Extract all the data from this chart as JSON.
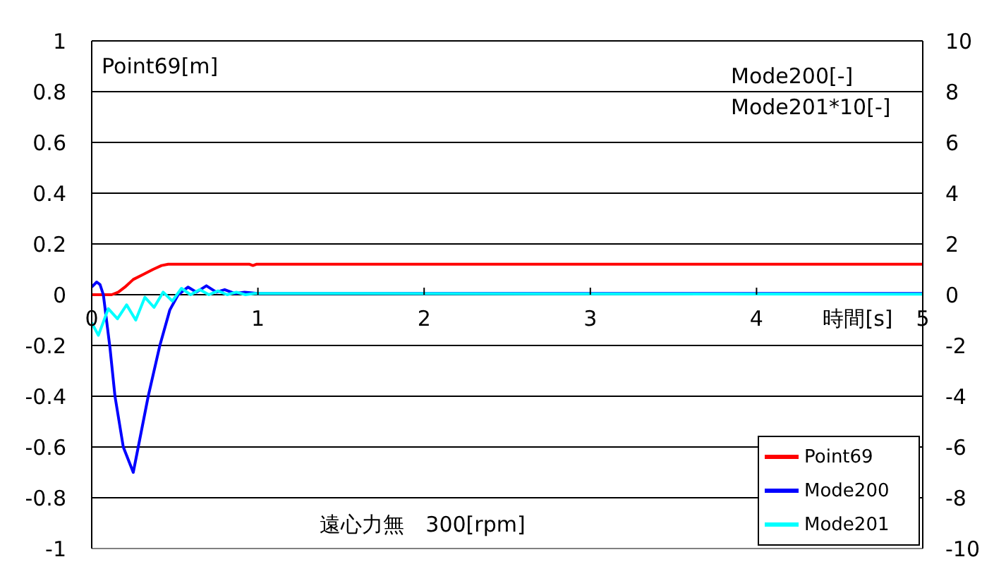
{
  "chart_data": {
    "type": "line",
    "xlabel": "時間[s]",
    "ylabel": "Point69[m]",
    "y2label": "Mode200[-]\nMode201*10[-]",
    "annotations": [
      "遠心力無　300[rpm]"
    ],
    "xlim": [
      0,
      5
    ],
    "xticks": [
      0,
      1,
      2,
      3,
      4,
      5
    ],
    "ylim": [
      -1,
      1
    ],
    "yticks": [
      -1,
      -0.8,
      -0.6,
      -0.4,
      -0.2,
      0,
      0.2,
      0.4,
      0.6,
      0.8,
      1
    ],
    "y2lim": [
      -10,
      10
    ],
    "y2ticks": [
      -10,
      -8,
      -6,
      -4,
      -2,
      0,
      2,
      4,
      6,
      8,
      10
    ],
    "grid": "y",
    "legend": "bottom right",
    "marker": "none",
    "line_style": "solid",
    "series": [
      {
        "name": "Point69",
        "color": "#ff0000",
        "x": [
          0,
          0.12,
          0.16,
          0.2,
          0.25,
          0.31,
          0.37,
          0.42,
          0.46,
          0.95,
          0.97,
          0.99,
          5
        ],
        "values": [
          0,
          0,
          0.01,
          0.03,
          0.06,
          0.08,
          0.1,
          0.115,
          0.12,
          0.12,
          0.115,
          0.12,
          0.12
        ]
      },
      {
        "name": "Mode200",
        "color": "#0000ff",
        "axis": "y2",
        "x": [
          0,
          0.03,
          0.05,
          0.07,
          0.11,
          0.14,
          0.19,
          0.25,
          0.28,
          0.34,
          0.41,
          0.47,
          0.52,
          0.58,
          0.63,
          0.69,
          0.75,
          0.8,
          0.86,
          0.92,
          1,
          5
        ],
        "values": [
          0.3,
          0.5,
          0.4,
          0,
          -2.1,
          -4,
          -6,
          -7,
          -6,
          -4,
          -2,
          -0.6,
          0,
          0.3,
          0.1,
          0.35,
          0.1,
          0.2,
          0.05,
          0.1,
          0.05,
          0.05
        ]
      },
      {
        "name": "Mode201",
        "color": "#00ffff",
        "axis": "y2",
        "x": [
          0,
          0.04,
          0.1,
          0.155,
          0.21,
          0.265,
          0.32,
          0.375,
          0.43,
          0.485,
          0.54,
          0.595,
          0.65,
          0.705,
          0.76,
          0.815,
          0.87,
          0.925,
          0.98,
          5
        ],
        "values": [
          -1.1,
          -1.6,
          -0.55,
          -0.95,
          -0.4,
          -1,
          -0.1,
          -0.5,
          0.1,
          -0.25,
          0.25,
          0,
          0.2,
          0,
          0.15,
          0,
          0.1,
          0,
          0.05,
          0.02
        ]
      }
    ]
  }
}
